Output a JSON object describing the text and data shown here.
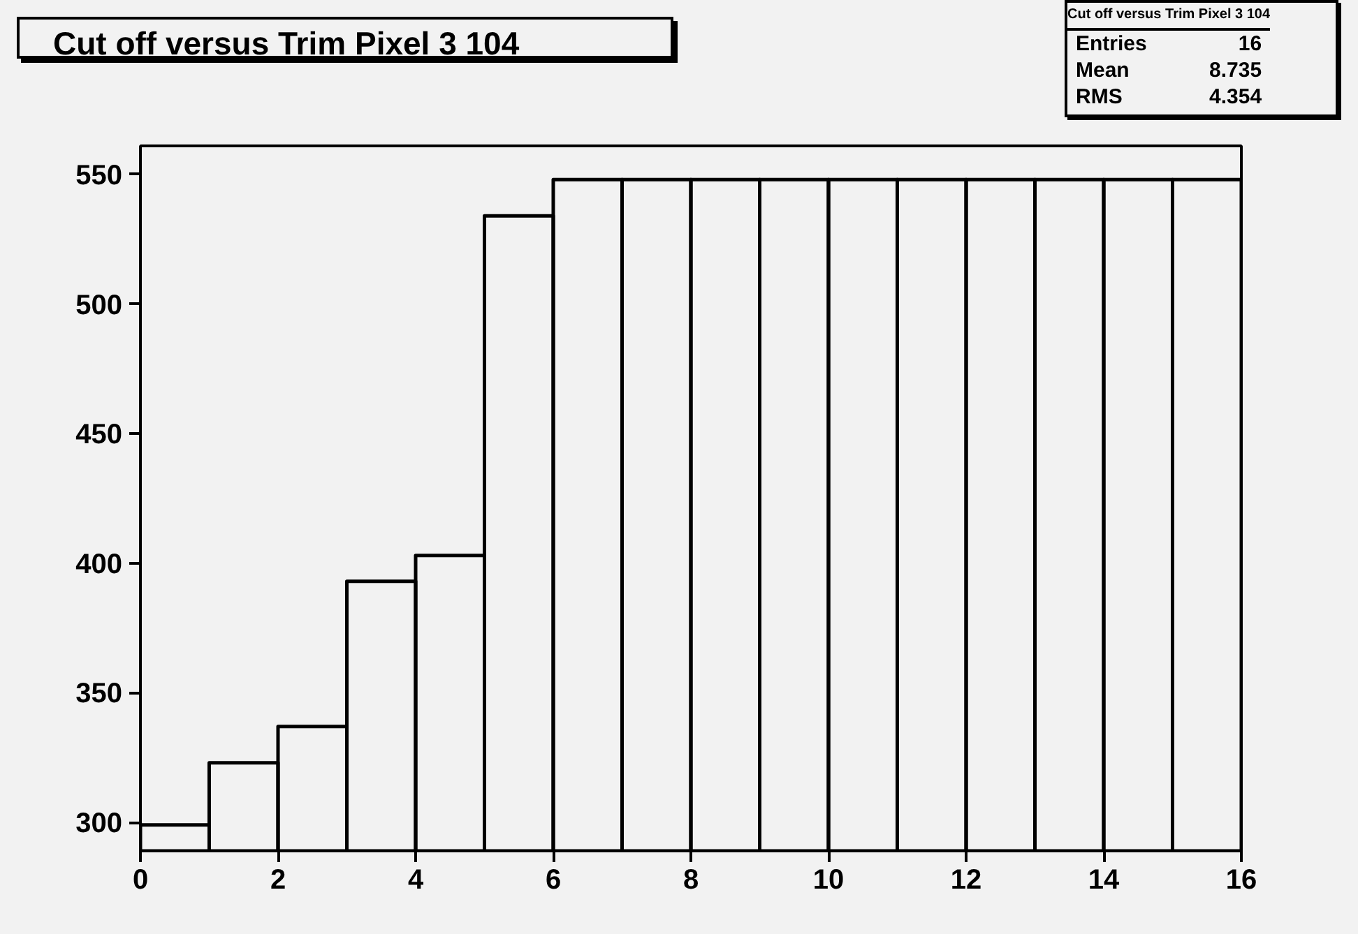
{
  "chart_data": {
    "type": "histogram",
    "title": "Cut off versus Trim Pixel 3 104",
    "bins": [
      0,
      1,
      2,
      3,
      4,
      5,
      6,
      7,
      8,
      9,
      10,
      11,
      12,
      13,
      14,
      15,
      16
    ],
    "values": [
      299,
      323,
      337,
      393,
      403,
      534,
      548,
      548,
      548,
      548,
      548,
      548,
      548,
      548,
      548,
      548
    ],
    "color": "#000000",
    "xlim": [
      0,
      16
    ],
    "xticks": [
      0,
      2,
      4,
      6,
      8,
      10,
      12,
      14,
      16
    ],
    "ylim": [
      289,
      561
    ],
    "yticks": [
      300,
      350,
      400,
      450,
      500,
      550
    ],
    "grid": false,
    "annotations": [
      "Cut off versus Trim Pixel 3 104",
      "Entries",
      "16",
      "Mean",
      "8.735",
      "RMS",
      "4.354"
    ]
  }
}
